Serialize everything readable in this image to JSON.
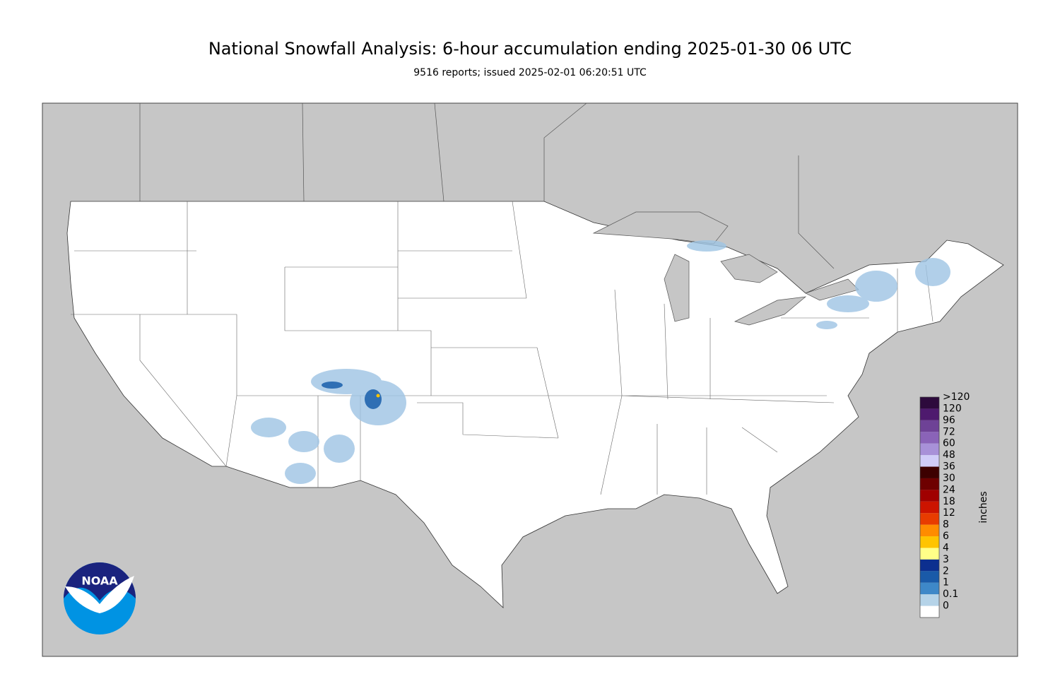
{
  "title": "National Snowfall Analysis: 6-hour accumulation ending 2025-01-30 06 UTC",
  "subtitle": "9516 reports; issued 2025-02-01 06:20:51 UTC",
  "logo_text": "NOAA",
  "legend": {
    "unit": "inches",
    "entries": [
      {
        "label": ">120",
        "color": "#2d0a3c"
      },
      {
        "label": "120",
        "color": "#4e1a6e"
      },
      {
        "label": "96",
        "color": "#6e4296"
      },
      {
        "label": "72",
        "color": "#8a63b8"
      },
      {
        "label": "60",
        "color": "#a891d8"
      },
      {
        "label": "48",
        "color": "#d0ccf8"
      },
      {
        "label": "36",
        "color": "#3d0000"
      },
      {
        "label": "30",
        "color": "#6e0000"
      },
      {
        "label": "24",
        "color": "#a00000"
      },
      {
        "label": "18",
        "color": "#cc1400"
      },
      {
        "label": "12",
        "color": "#e83c00"
      },
      {
        "label": "8",
        "color": "#ff8c00"
      },
      {
        "label": "6",
        "color": "#ffc400"
      },
      {
        "label": "4",
        "color": "#ffff88"
      },
      {
        "label": "3",
        "color": "#0c2f8f"
      },
      {
        "label": "2",
        "color": "#1a5aa8"
      },
      {
        "label": "1",
        "color": "#3e88c8"
      },
      {
        "label": "0.1",
        "color": "#b5d3e8"
      },
      {
        "label": "0",
        "color": "#ffffff"
      }
    ]
  }
}
